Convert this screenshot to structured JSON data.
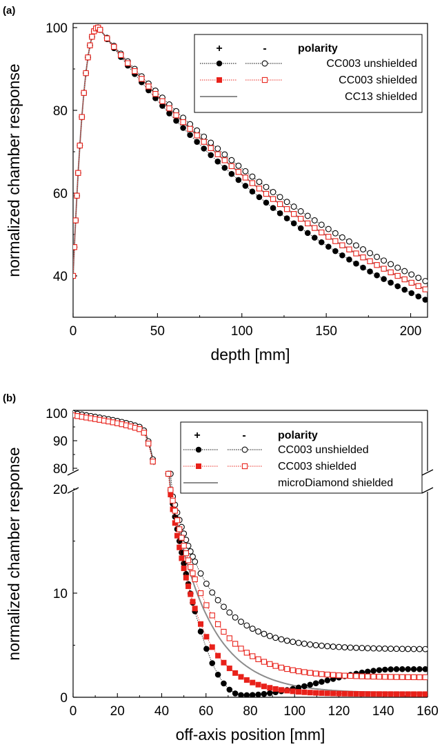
{
  "chart_data": [
    {
      "panel_label": "(a)",
      "type": "scatter",
      "xlabel": "depth [mm]",
      "ylabel": "normalized chamber response",
      "xlim": [
        0,
        210
      ],
      "ylim": [
        30,
        101
      ],
      "xticks": [
        "0",
        "50",
        "100",
        "150",
        "200"
      ],
      "yticks": [
        "40",
        "60",
        "80",
        "100"
      ],
      "xtick_values": [
        0,
        50,
        100,
        150,
        200
      ],
      "ytick_values": [
        40,
        60,
        80,
        100
      ],
      "legend": {
        "placement": "top-right",
        "header_plus": "+",
        "header_minus": "-",
        "header_label": "polarity",
        "entries": [
          "CC003 unshielded",
          "CC003 shielded",
          "CC13 shielded"
        ]
      },
      "curves": {
        "model": "pdd",
        "unshielded_pos_end": 34,
        "unshielded_neg_end": 38.5,
        "shielded_end": 36.5,
        "reference_end": 36.5,
        "surface_value": 40,
        "peak_depth": 15
      },
      "series": [
        {
          "name": "CC003 unshielded",
          "polarity": "+",
          "marker": "filled-circle",
          "color": "#000000",
          "x": [
            0,
            2,
            5,
            10,
            15,
            20,
            30,
            50,
            75,
            100,
            125,
            150,
            175,
            200,
            210
          ],
          "y": [
            47,
            66,
            82,
            97,
            100,
            99,
            94.5,
            86,
            74,
            63.5,
            55,
            47.5,
            41,
            36,
            34
          ]
        },
        {
          "name": "CC003 unshielded",
          "polarity": "-",
          "marker": "open-circle",
          "color": "#000000",
          "x": [
            0,
            2,
            5,
            10,
            15,
            20,
            30,
            50,
            75,
            100,
            125,
            150,
            175,
            200,
            210
          ],
          "y": [
            41,
            66,
            82,
            97,
            100,
            99,
            95,
            88,
            78,
            69,
            60.5,
            52.5,
            46,
            40.5,
            38.5
          ]
        },
        {
          "name": "CC003 shielded",
          "polarity": "+",
          "marker": "filled-square",
          "color": "#e8211a",
          "x": [
            0,
            2,
            5,
            10,
            15,
            20,
            30,
            50,
            75,
            100,
            125,
            150,
            175,
            200,
            210
          ],
          "y": [
            40,
            65,
            82,
            97,
            100,
            99,
            95,
            87,
            77,
            66.5,
            58,
            50.5,
            44,
            38.5,
            36.5
          ]
        },
        {
          "name": "CC003 shielded",
          "polarity": "-",
          "marker": "open-square",
          "color": "#e8211a",
          "x": [
            0,
            2,
            5,
            10,
            15,
            20,
            30,
            50,
            75,
            100,
            125,
            150,
            175,
            200,
            210
          ],
          "y": [
            40,
            65,
            82,
            97,
            100,
            99,
            95,
            87,
            77,
            66.5,
            58,
            50.5,
            44,
            38.5,
            36.5
          ]
        },
        {
          "name": "CC13 shielded",
          "marker": "line",
          "color": "#8c8c8c",
          "x": [
            0,
            2,
            5,
            10,
            15,
            20,
            30,
            50,
            75,
            100,
            125,
            150,
            175,
            200,
            210
          ],
          "y": [
            40,
            65,
            82,
            97,
            100,
            99,
            95,
            87,
            77,
            66.5,
            58,
            50.5,
            44,
            38.5,
            36.5
          ]
        }
      ]
    },
    {
      "panel_label": "(b)",
      "type": "scatter",
      "xlabel": "off-axis position [mm]",
      "ylabel": "normalized chamber response",
      "xlim": [
        0,
        160
      ],
      "ylim_lower": [
        0,
        20
      ],
      "ylim_upper": [
        78,
        101
      ],
      "broken_y_axis": true,
      "xticks": [
        "0",
        "20",
        "40",
        "60",
        "80",
        "100",
        "120",
        "140",
        "160"
      ],
      "yticks": [
        "0",
        "10",
        "20",
        "80",
        "90",
        "100"
      ],
      "xtick_values": [
        0,
        20,
        40,
        60,
        80,
        100,
        120,
        140,
        160
      ],
      "ytick_values": [
        0,
        10,
        20,
        80,
        90,
        100
      ],
      "legend": {
        "placement": "top-right",
        "header_plus": "+",
        "header_minus": "-",
        "header_label": "polarity",
        "entries": [
          "CC003 unshielded",
          "CC003 shielded",
          "microDiamond shielded"
        ]
      },
      "curves": {
        "model": "profile",
        "penumbra_center": 40,
        "upper_start": 100,
        "upper_end": 79,
        "lower_start": 21,
        "tails": {
          "unshielded_pos": {
            "dip_at": 77,
            "dip_value": 0.2,
            "end_value": 2.7
          },
          "unshielded_neg": {
            "floor": 4.6,
            "decay": 18
          },
          "shielded_pos": {
            "floor": 0.3,
            "decay": 13
          },
          "shielded_neg": {
            "floor": 1.9,
            "decay": 17
          },
          "reference": {
            "floor": 0.4,
            "decay": 17
          }
        }
      },
      "series": [
        {
          "name": "CC003 unshielded",
          "polarity": "+",
          "marker": "filled-circle",
          "color": "#000000",
          "x": [
            0,
            20,
            30,
            37,
            43,
            45,
            50,
            60,
            70,
            77,
            80,
            90,
            100,
            120,
            140,
            160
          ],
          "y": [
            100,
            99,
            96,
            82,
            21,
            13,
            5,
            2,
            0.8,
            0.2,
            0.5,
            1.2,
            1.6,
            2.0,
            2.4,
            2.7
          ]
        },
        {
          "name": "CC003 unshielded",
          "polarity": "-",
          "marker": "open-circle",
          "color": "#000000",
          "x": [
            0,
            20,
            30,
            37,
            43,
            45,
            50,
            60,
            70,
            80,
            100,
            120,
            140,
            160
          ],
          "y": [
            100,
            99,
            96,
            82,
            21,
            18,
            13,
            9.5,
            7.5,
            6.5,
            5.5,
            5,
            4.8,
            4.6
          ]
        },
        {
          "name": "CC003 shielded",
          "polarity": "+",
          "marker": "filled-square",
          "color": "#e8211a",
          "x": [
            0,
            20,
            30,
            37,
            43,
            45,
            50,
            60,
            70,
            80,
            100,
            120,
            140,
            160
          ],
          "y": [
            99,
            98.5,
            95.5,
            82,
            21,
            10,
            6,
            3.5,
            2.5,
            1.8,
            1,
            0.7,
            0.5,
            0.3
          ]
        },
        {
          "name": "CC003 shielded",
          "polarity": "-",
          "marker": "open-square",
          "color": "#e8211a",
          "x": [
            0,
            20,
            30,
            37,
            43,
            45,
            50,
            60,
            70,
            80,
            100,
            120,
            140,
            160
          ],
          "y": [
            99,
            98.5,
            95.5,
            82,
            21,
            12,
            9,
            6,
            4.5,
            3.5,
            2.6,
            2.2,
            2,
            1.9
          ]
        },
        {
          "name": "microDiamond shielded",
          "marker": "line",
          "color": "#8c8c8c",
          "x": [
            0,
            20,
            30,
            37,
            43,
            45,
            50,
            60,
            70,
            80,
            100,
            120,
            140,
            160
          ],
          "y": [
            100,
            99,
            96,
            82,
            21,
            11,
            7,
            4.5,
            3,
            2.2,
            1.3,
            0.9,
            0.6,
            0.4
          ]
        }
      ]
    }
  ]
}
